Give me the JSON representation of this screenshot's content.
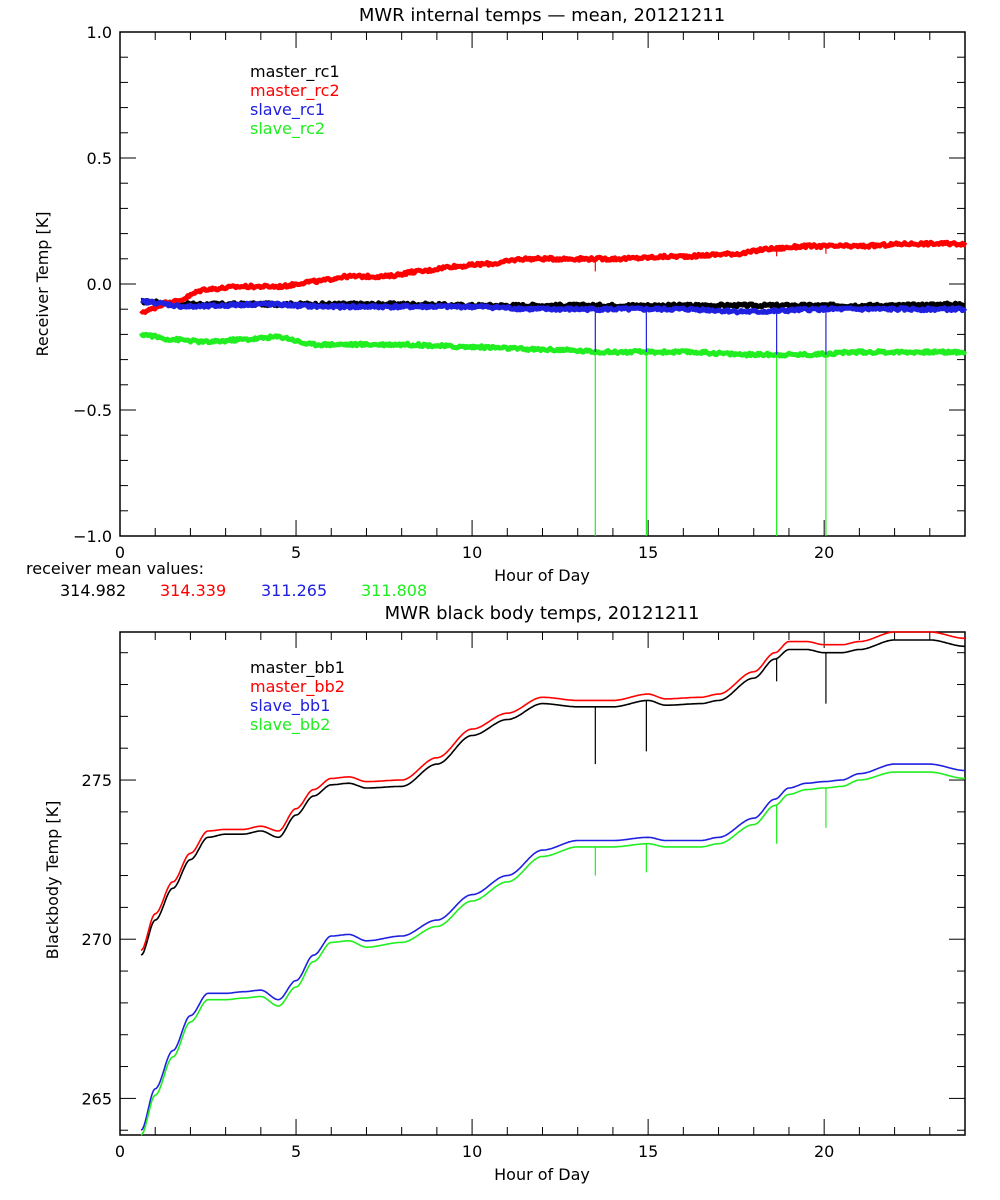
{
  "colors": {
    "black": "#000000",
    "red": "#ff0000",
    "blue": "#2020e0",
    "green": "#20ee20"
  },
  "chart_data": [
    {
      "type": "line",
      "title": "MWR internal temps — mean, 20121211",
      "xlabel": "Hour of Day",
      "ylabel": "Receiver Temp [K]",
      "xlim": [
        0,
        24
      ],
      "ylim": [
        -1.0,
        1.0
      ],
      "xticks": [
        0,
        5,
        10,
        15,
        20
      ],
      "xtick_labels": [
        "0",
        "5",
        "10",
        "15",
        "20"
      ],
      "yticks": [
        -1.0,
        -0.5,
        0.0,
        0.5,
        1.0
      ],
      "ytick_labels": [
        "−1.0",
        "−0.5",
        "0.0",
        "0.5",
        "1.0"
      ],
      "grid": false,
      "legend_position": "top-left",
      "series": [
        {
          "name": "master_rc1",
          "color": "#000000",
          "x": [
            0.6,
            2,
            4,
            6,
            8,
            10,
            12,
            14,
            16,
            18,
            20,
            22,
            24
          ],
          "y": [
            -0.07,
            -0.08,
            -0.08,
            -0.08,
            -0.08,
            -0.085,
            -0.085,
            -0.085,
            -0.085,
            -0.085,
            -0.085,
            -0.085,
            -0.08
          ]
        },
        {
          "name": "master_rc2",
          "color": "#ff0000",
          "x": [
            0.6,
            1.5,
            2.5,
            3.5,
            4.5,
            5.5,
            6.5,
            7.5,
            8.5,
            9.5,
            10.5,
            11.5,
            12.5,
            14,
            16,
            17.5,
            18.5,
            19.5,
            21,
            22.5,
            24
          ],
          "y": [
            -0.11,
            -0.07,
            -0.02,
            -0.01,
            -0.01,
            0.01,
            0.03,
            0.03,
            0.05,
            0.07,
            0.08,
            0.1,
            0.1,
            0.1,
            0.11,
            0.12,
            0.14,
            0.15,
            0.15,
            0.16,
            0.16
          ]
        },
        {
          "name": "slave_rc1",
          "color": "#2020e0",
          "x": [
            0.6,
            2,
            4,
            6,
            8,
            10,
            12,
            14,
            16,
            18,
            20,
            22,
            24
          ],
          "y": [
            -0.07,
            -0.09,
            -0.08,
            -0.09,
            -0.09,
            -0.09,
            -0.1,
            -0.1,
            -0.1,
            -0.11,
            -0.1,
            -0.1,
            -0.1
          ]
        },
        {
          "name": "slave_rc2",
          "color": "#20ee20",
          "x": [
            0.6,
            1.5,
            2.5,
            3.5,
            4.5,
            5.5,
            6.5,
            8,
            10,
            12,
            14,
            16,
            18,
            19.5,
            21,
            22.5,
            24
          ],
          "y": [
            -0.2,
            -0.22,
            -0.23,
            -0.22,
            -0.21,
            -0.24,
            -0.24,
            -0.24,
            -0.25,
            -0.26,
            -0.27,
            -0.27,
            -0.28,
            -0.28,
            -0.27,
            -0.27,
            -0.27
          ]
        }
      ],
      "spikes": [
        {
          "x": 13.5,
          "series": "slave_rc2",
          "to": -1.0
        },
        {
          "x": 14.95,
          "series": "slave_rc2",
          "to": -1.0
        },
        {
          "x": 18.65,
          "series": "slave_rc2",
          "to": -1.0
        },
        {
          "x": 20.05,
          "series": "slave_rc2",
          "to": -1.0
        },
        {
          "x": 13.5,
          "series": "slave_rc1",
          "to": -0.27
        },
        {
          "x": 14.95,
          "series": "slave_rc1",
          "to": -0.27
        },
        {
          "x": 18.65,
          "series": "slave_rc1",
          "to": -0.28
        },
        {
          "x": 20.05,
          "series": "slave_rc1",
          "to": -0.28
        },
        {
          "x": 13.5,
          "series": "master_rc2",
          "to": 0.05
        },
        {
          "x": 18.65,
          "series": "master_rc2",
          "to": 0.11
        },
        {
          "x": 20.05,
          "series": "master_rc2",
          "to": 0.12
        }
      ],
      "footer": {
        "label": "receiver mean values:",
        "values": [
          {
            "text": "314.982",
            "color": "#000000"
          },
          {
            "text": "314.339",
            "color": "#ff0000"
          },
          {
            "text": "311.265",
            "color": "#2020e0"
          },
          {
            "text": "311.808",
            "color": "#20ee20"
          }
        ]
      }
    },
    {
      "type": "line",
      "title": "MWR black body temps, 20121211",
      "xlabel": "Hour of Day",
      "ylabel": "Blackbody Temp [K]",
      "xlim": [
        0,
        24
      ],
      "ylim": [
        263.85,
        279.65
      ],
      "xticks": [
        0,
        5,
        10,
        15,
        20
      ],
      "xtick_labels": [
        "0",
        "5",
        "10",
        "15",
        "20"
      ],
      "yticks": [
        265,
        270,
        275
      ],
      "ytick_labels": [
        "265",
        "270",
        "275"
      ],
      "grid": false,
      "legend_position": "top-left",
      "series": [
        {
          "name": "master_bb1",
          "color": "#000000",
          "x": [
            0.6,
            1.0,
            1.5,
            2.0,
            2.5,
            3.0,
            3.5,
            4.0,
            4.5,
            5.0,
            5.5,
            6.0,
            6.5,
            7.0,
            8.0,
            9.0,
            10.0,
            11.0,
            12.0,
            13.0,
            14.0,
            15.0,
            15.5,
            16.5,
            17.0,
            18.0,
            18.6,
            19.0,
            19.5,
            20.0,
            20.5,
            21.0,
            22.0,
            23.0,
            24.0
          ],
          "y": [
            269.5,
            270.6,
            271.6,
            272.5,
            273.2,
            273.3,
            273.3,
            273.4,
            273.2,
            273.9,
            274.5,
            274.85,
            274.9,
            274.75,
            274.8,
            275.5,
            276.4,
            276.9,
            277.4,
            277.3,
            277.3,
            277.5,
            277.35,
            277.4,
            277.5,
            278.2,
            278.8,
            279.1,
            279.1,
            279.0,
            279.0,
            279.1,
            279.4,
            279.4,
            279.2
          ]
        },
        {
          "name": "master_bb2",
          "color": "#ff0000",
          "x": [
            0.6,
            1.0,
            1.5,
            2.0,
            2.5,
            3.0,
            3.5,
            4.0,
            4.5,
            5.0,
            5.5,
            6.0,
            6.5,
            7.0,
            8.0,
            9.0,
            10.0,
            11.0,
            12.0,
            13.0,
            14.0,
            15.0,
            15.5,
            16.5,
            17.0,
            18.0,
            18.6,
            19.0,
            19.5,
            20.0,
            20.5,
            21.0,
            22.0,
            23.0,
            24.0
          ],
          "y": [
            269.65,
            270.8,
            271.8,
            272.7,
            273.4,
            273.45,
            273.45,
            273.55,
            273.4,
            274.1,
            274.7,
            275.05,
            275.1,
            274.95,
            275.0,
            275.7,
            276.6,
            277.1,
            277.6,
            277.5,
            277.5,
            277.7,
            277.55,
            277.6,
            277.7,
            278.4,
            279.0,
            279.35,
            279.35,
            279.25,
            279.25,
            279.35,
            279.65,
            279.65,
            279.45
          ]
        },
        {
          "name": "slave_bb1",
          "color": "#2020e0",
          "x": [
            0.6,
            1.0,
            1.5,
            2.0,
            2.5,
            3.0,
            3.5,
            4.0,
            4.5,
            5.0,
            5.5,
            6.0,
            6.5,
            7.0,
            8.0,
            9.0,
            10.0,
            11.0,
            12.0,
            13.0,
            14.0,
            15.0,
            15.5,
            16.5,
            17.0,
            18.0,
            18.6,
            19.0,
            19.5,
            20.0,
            20.5,
            21.0,
            22.0,
            23.0,
            24.0
          ],
          "y": [
            264.0,
            265.3,
            266.5,
            267.6,
            268.3,
            268.3,
            268.35,
            268.4,
            268.1,
            268.7,
            269.5,
            270.1,
            270.15,
            269.95,
            270.1,
            270.6,
            271.4,
            272.0,
            272.8,
            273.1,
            273.1,
            273.2,
            273.1,
            273.1,
            273.2,
            273.8,
            274.4,
            274.75,
            274.9,
            274.95,
            275.0,
            275.2,
            275.5,
            275.5,
            275.3
          ]
        },
        {
          "name": "slave_bb2",
          "color": "#20ee20",
          "x": [
            0.6,
            1.0,
            1.5,
            2.0,
            2.5,
            3.0,
            3.5,
            4.0,
            4.5,
            5.0,
            5.5,
            6.0,
            6.5,
            7.0,
            8.0,
            9.0,
            10.0,
            11.0,
            12.0,
            13.0,
            14.0,
            15.0,
            15.5,
            16.5,
            17.0,
            18.0,
            18.6,
            19.0,
            19.5,
            20.0,
            20.5,
            21.0,
            22.0,
            23.0,
            24.0
          ],
          "y": [
            263.85,
            265.1,
            266.3,
            267.4,
            268.1,
            268.1,
            268.15,
            268.2,
            267.9,
            268.5,
            269.3,
            269.9,
            269.95,
            269.75,
            269.9,
            270.4,
            271.2,
            271.8,
            272.6,
            272.9,
            272.9,
            273.0,
            272.9,
            272.9,
            273.0,
            273.6,
            274.2,
            274.55,
            274.7,
            274.75,
            274.8,
            275.0,
            275.25,
            275.25,
            275.05
          ]
        }
      ],
      "spikes": [
        {
          "x": 13.5,
          "series": "master_bb1",
          "to": 275.5
        },
        {
          "x": 14.95,
          "series": "master_bb1",
          "to": 275.9
        },
        {
          "x": 18.65,
          "series": "master_bb1",
          "to": 278.1
        },
        {
          "x": 20.05,
          "series": "master_bb1",
          "to": 277.4
        },
        {
          "x": 13.5,
          "series": "slave_bb2",
          "to": 272.0
        },
        {
          "x": 14.95,
          "series": "slave_bb2",
          "to": 272.1
        },
        {
          "x": 18.65,
          "series": "slave_bb2",
          "to": 273.0
        },
        {
          "x": 20.05,
          "series": "slave_bb2",
          "to": 273.5
        }
      ]
    }
  ]
}
